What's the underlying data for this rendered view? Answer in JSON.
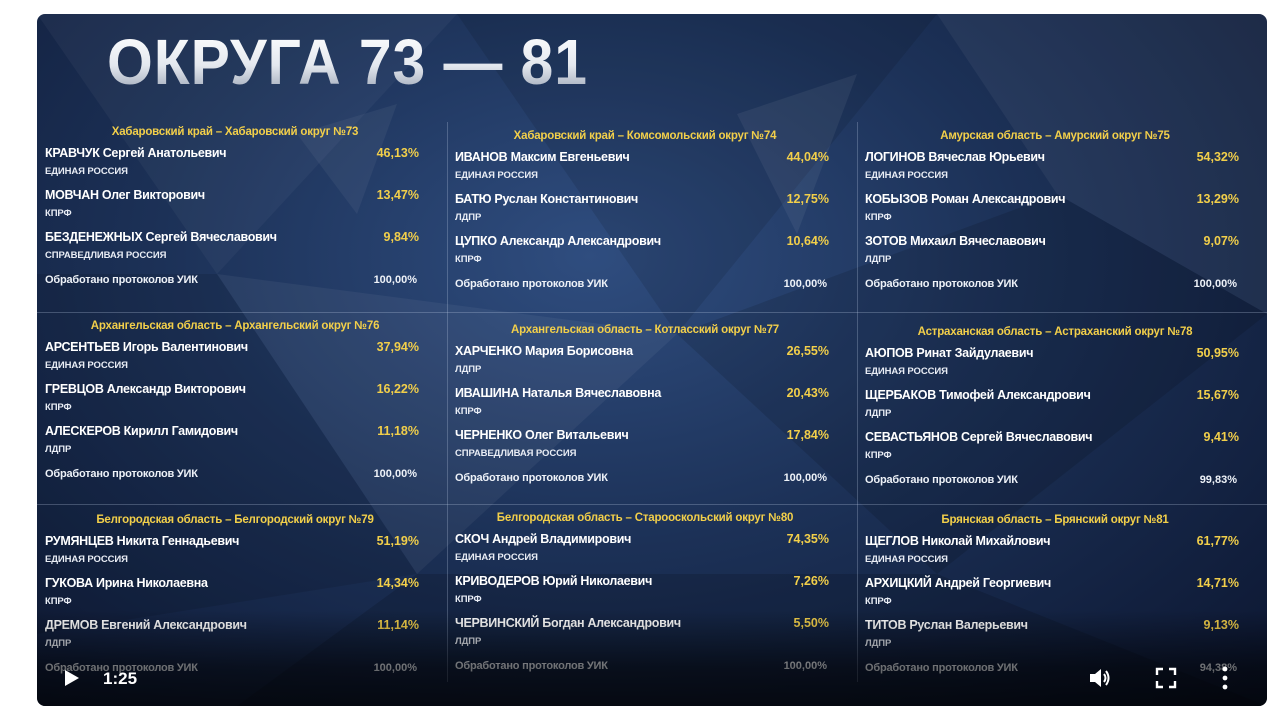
{
  "title": "ОКРУГА 73 — 81",
  "colors": {
    "accent": "#f2cf4a",
    "background": "#1c3157"
  },
  "processed_label": "Обработано протоколов УИК",
  "districts": [
    {
      "header": "Хабаровский край – Хабаровский округ №73",
      "candidates": [
        {
          "name": "КРАВЧУК Сергей Анатольевич",
          "percent": "46,13%",
          "party": "ЕДИНАЯ РОССИЯ"
        },
        {
          "name": "МОВЧАН Олег Викторович",
          "percent": "13,47%",
          "party": "КПРФ"
        },
        {
          "name": "БЕЗДЕНЕЖНЫХ Сергей Вячеславович",
          "percent": "9,84%",
          "party": "СПРАВЕДЛИВАЯ РОССИЯ"
        }
      ],
      "processed": "100,00%"
    },
    {
      "header": "Хабаровский край – Комсомольский округ №74",
      "candidates": [
        {
          "name": "ИВАНОВ Максим Евгеньевич",
          "percent": "44,04%",
          "party": "ЕДИНАЯ РОССИЯ"
        },
        {
          "name": "БАТЮ Руслан Константинович",
          "percent": "12,75%",
          "party": "ЛДПР"
        },
        {
          "name": "ЦУПКО Александр Александрович",
          "percent": "10,64%",
          "party": "КПРФ"
        }
      ],
      "processed": "100,00%"
    },
    {
      "header": "Амурская область – Амурский округ №75",
      "candidates": [
        {
          "name": "ЛОГИНОВ Вячеслав Юрьевич",
          "percent": "54,32%",
          "party": "ЕДИНАЯ РОССИЯ"
        },
        {
          "name": "КОБЫЗОВ Роман Александрович",
          "percent": "13,29%",
          "party": "КПРФ"
        },
        {
          "name": "ЗОТОВ Михаил Вячеславович",
          "percent": "9,07%",
          "party": "ЛДПР"
        }
      ],
      "processed": "100,00%"
    },
    {
      "header": "Архангельская область – Архангельский округ №76",
      "candidates": [
        {
          "name": "АРСЕНТЬЕВ Игорь Валентинович",
          "percent": "37,94%",
          "party": "ЕДИНАЯ РОССИЯ"
        },
        {
          "name": "ГРЕВЦОВ Александр Викторович",
          "percent": "16,22%",
          "party": "КПРФ"
        },
        {
          "name": "АЛЕСКЕРОВ Кирилл Гамидович",
          "percent": "11,18%",
          "party": "ЛДПР"
        }
      ],
      "processed": "100,00%"
    },
    {
      "header": "Архангельская область – Котласский округ №77",
      "candidates": [
        {
          "name": "ХАРЧЕНКО Мария Борисовна",
          "percent": "26,55%",
          "party": "ЛДПР"
        },
        {
          "name": "ИВАШИНА Наталья Вячеславовна",
          "percent": "20,43%",
          "party": "КПРФ"
        },
        {
          "name": "ЧЕРНЕНКО Олег Витальевич",
          "percent": "17,84%",
          "party": "СПРАВЕДЛИВАЯ РОССИЯ"
        }
      ],
      "processed": "100,00%"
    },
    {
      "header": "Астраханская область – Астраханский округ №78",
      "candidates": [
        {
          "name": "АЮПОВ Ринат Зайдулаевич",
          "percent": "50,95%",
          "party": "ЕДИНАЯ РОССИЯ"
        },
        {
          "name": "ЩЕРБАКОВ Тимофей Александрович",
          "percent": "15,67%",
          "party": "ЛДПР"
        },
        {
          "name": "СЕВАСТЬЯНОВ Сергей Вячеславович",
          "percent": "9,41%",
          "party": "КПРФ"
        }
      ],
      "processed": "99,83%"
    },
    {
      "header": "Белгородская область – Белгородский округ №79",
      "candidates": [
        {
          "name": "РУМЯНЦЕВ Никита Геннадьевич",
          "percent": "51,19%",
          "party": "ЕДИНАЯ РОССИЯ"
        },
        {
          "name": "ГУКОВА Ирина Николаевна",
          "percent": "14,34%",
          "party": "КПРФ"
        },
        {
          "name": "ДРЕМОВ Евгений Александрович",
          "percent": "11,14%",
          "party": "ЛДПР"
        }
      ],
      "processed": "100,00%"
    },
    {
      "header": "Белгородская область – Старооскольский округ №80",
      "candidates": [
        {
          "name": "СКОЧ Андрей Владимирович",
          "percent": "74,35%",
          "party": "ЕДИНАЯ РОССИЯ"
        },
        {
          "name": "КРИВОДЕРОВ Юрий Николаевич",
          "percent": "7,26%",
          "party": "КПРФ"
        },
        {
          "name": "ЧЕРВИНСКИЙ Богдан Александрович",
          "percent": "5,50%",
          "party": "ЛДПР"
        }
      ],
      "processed": "100,00%"
    },
    {
      "header": "Брянская область – Брянский округ №81",
      "candidates": [
        {
          "name": "ЩЕГЛОВ Николай Михайлович",
          "percent": "61,77%",
          "party": "ЕДИНАЯ РОССИЯ"
        },
        {
          "name": "АРХИЦКИЙ Андрей Георгиевич",
          "percent": "14,71%",
          "party": "КПРФ"
        },
        {
          "name": "ТИТОВ Руслан Валерьевич",
          "percent": "9,13%",
          "party": "ЛДПР"
        }
      ],
      "processed": "94,38%"
    }
  ],
  "player": {
    "time": "1:25",
    "icons": {
      "play": "play-icon",
      "volume": "volume-icon",
      "fullscreen": "fullscreen-icon",
      "more": "more-vert-icon"
    }
  }
}
